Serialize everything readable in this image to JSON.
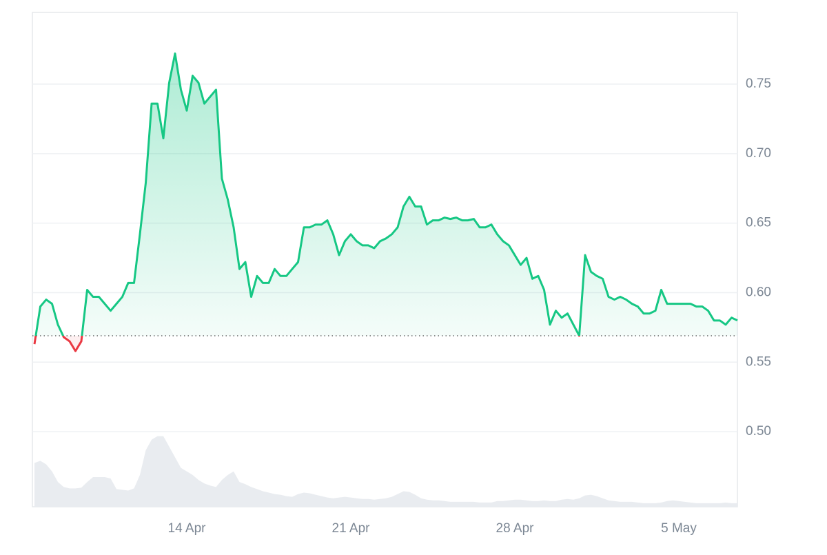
{
  "chart_data": {
    "type": "line",
    "categories": [
      null,
      null,
      null,
      null,
      null,
      null,
      null,
      null,
      null,
      null,
      null,
      null,
      null,
      null,
      null,
      null,
      null,
      null,
      null,
      null,
      null,
      null,
      null,
      null,
      null,
      null,
      "14 Apr",
      null,
      null,
      null,
      null,
      null,
      null,
      null,
      null,
      null,
      null,
      null,
      null,
      null,
      null,
      null,
      null,
      null,
      null,
      null,
      null,
      null,
      null,
      null,
      null,
      null,
      null,
      null,
      "21 Apr",
      null,
      null,
      null,
      null,
      null,
      null,
      null,
      null,
      null,
      null,
      null,
      null,
      null,
      null,
      null,
      null,
      null,
      null,
      null,
      null,
      null,
      null,
      null,
      null,
      null,
      null,
      null,
      "28 Apr",
      null,
      null,
      null,
      null,
      null,
      null,
      null,
      null,
      null,
      null,
      null,
      null,
      null,
      null,
      null,
      null,
      null,
      null,
      null,
      null,
      null,
      null,
      null,
      null,
      null,
      null,
      null,
      "5 May",
      null,
      null,
      null,
      null,
      null,
      null,
      null,
      null,
      null,
      null
    ],
    "values": [
      0.563,
      0.59,
      0.595,
      0.592,
      0.577,
      0.568,
      0.565,
      0.558,
      0.565,
      0.602,
      0.597,
      0.597,
      0.592,
      0.587,
      0.592,
      0.597,
      0.607,
      0.607,
      0.642,
      0.679,
      0.736,
      0.736,
      0.711,
      0.751,
      0.772,
      0.746,
      0.731,
      0.756,
      0.751,
      0.736,
      0.741,
      0.746,
      0.682,
      0.667,
      0.647,
      0.617,
      0.622,
      0.597,
      0.612,
      0.607,
      0.607,
      0.617,
      0.612,
      0.612,
      0.617,
      0.622,
      0.647,
      0.647,
      0.649,
      0.649,
      0.652,
      0.642,
      0.627,
      0.637,
      0.642,
      0.637,
      0.634,
      0.634,
      0.632,
      0.637,
      0.639,
      0.642,
      0.647,
      0.662,
      0.669,
      0.662,
      0.662,
      0.649,
      0.652,
      0.652,
      0.654,
      0.653,
      0.654,
      0.652,
      0.652,
      0.653,
      0.647,
      0.647,
      0.649,
      0.642,
      0.637,
      0.634,
      0.627,
      0.62,
      0.625,
      0.61,
      0.612,
      0.602,
      0.577,
      0.587,
      0.582,
      0.585,
      0.577,
      0.569,
      0.627,
      0.615,
      0.612,
      0.61,
      0.597,
      0.595,
      0.597,
      0.595,
      0.592,
      0.59,
      0.585,
      0.585,
      0.587,
      0.602,
      0.592,
      0.592,
      0.592,
      0.592,
      0.592,
      0.59,
      0.59,
      0.587,
      0.58,
      0.58,
      0.577,
      0.582,
      0.58
    ],
    "baseline": 0.569,
    "color_up": "#16c784",
    "color_down": "#ea3943",
    "ylim": [
      0.446,
      0.8016
    ],
    "yticks": [
      {
        "value": 0.5,
        "label": "0.50"
      },
      0.55,
      {
        "value": 0.6,
        "label": "0.60"
      },
      0.65,
      {
        "value": 0.7,
        "label": "0.70"
      },
      0.75
    ],
    "grid": true,
    "volume": {
      "color": "#e9ecf0",
      "values": [
        62,
        65,
        60,
        50,
        35,
        28,
        26,
        26,
        27,
        35,
        42,
        42,
        42,
        40,
        25,
        24,
        23,
        26,
        45,
        80,
        95,
        100,
        100,
        85,
        70,
        55,
        50,
        45,
        38,
        33,
        30,
        28,
        38,
        45,
        50,
        35,
        32,
        28,
        25,
        22,
        20,
        18,
        17,
        15,
        14,
        18,
        20,
        19,
        17,
        15,
        13,
        12,
        13,
        14,
        13,
        12,
        11,
        11,
        10,
        11,
        12,
        14,
        18,
        22,
        21,
        17,
        12,
        10,
        9,
        9,
        8,
        7,
        7,
        7,
        7,
        7,
        6,
        6,
        6,
        8,
        8,
        9,
        10,
        10,
        9,
        8,
        8,
        9,
        8,
        8,
        10,
        11,
        10,
        12,
        16,
        17,
        15,
        12,
        9,
        8,
        7,
        7,
        7,
        6,
        5,
        5,
        5,
        6,
        8,
        9,
        8,
        7,
        6,
        5,
        5,
        5,
        5,
        5,
        6,
        5,
        5
      ]
    },
    "y2lim": [
      0,
      700
    ]
  }
}
